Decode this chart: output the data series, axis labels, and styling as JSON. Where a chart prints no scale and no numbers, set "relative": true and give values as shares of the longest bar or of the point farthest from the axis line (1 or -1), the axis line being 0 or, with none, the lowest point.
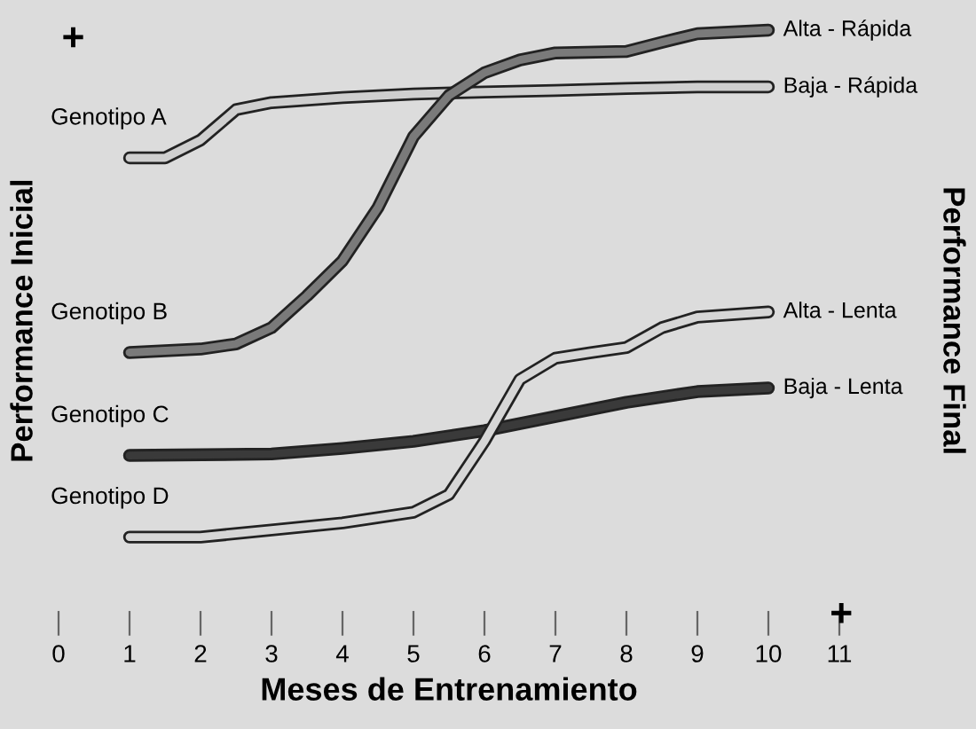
{
  "chart_data": {
    "type": "line",
    "relative": true,
    "xlabel": "Meses de Entrenamiento",
    "ylabel": "Performance Inicial",
    "y2label": "Performance Final",
    "xlim": [
      0,
      11
    ],
    "xticks": [
      0,
      1,
      2,
      3,
      4,
      5,
      6,
      7,
      8,
      9,
      10,
      11
    ],
    "tick_labels": "x",
    "grid": false,
    "legend": false,
    "marker": "none",
    "line_style": "solid",
    "series": [
      {
        "name": "Genotipo A",
        "color": "#cfcfcf",
        "x": [
          1,
          1.5,
          2,
          2.5,
          3,
          4,
          5,
          6,
          7,
          8,
          9,
          10
        ],
        "values": [
          0.748,
          0.748,
          0.783,
          0.843,
          0.857,
          0.867,
          0.874,
          0.878,
          0.881,
          0.885,
          0.888,
          0.888
        ]
      },
      {
        "name": "Genotipo B",
        "color": "#7a7a7a",
        "x": [
          1,
          2,
          2.5,
          3,
          3.5,
          4,
          4.5,
          5,
          5.5,
          6,
          6.5,
          7,
          8,
          8.5,
          9,
          10
        ],
        "values": [
          0.364,
          0.371,
          0.381,
          0.413,
          0.476,
          0.545,
          0.65,
          0.79,
          0.871,
          0.916,
          0.941,
          0.955,
          0.958,
          0.976,
          0.993,
          1
        ]
      },
      {
        "name": "Genotipo C",
        "color": "#3a3a3a",
        "x": [
          1,
          3,
          4,
          5,
          6,
          7,
          8,
          9,
          10
        ],
        "values": [
          0.161,
          0.164,
          0.175,
          0.189,
          0.21,
          0.238,
          0.266,
          0.287,
          0.294
        ]
      },
      {
        "name": "Genotipo D",
        "color": "#d6d6d6",
        "x": [
          1,
          2,
          3,
          4,
          5,
          5.5,
          6,
          6.5,
          7,
          7.5,
          8,
          8.5,
          9,
          10
        ],
        "values": [
          0,
          0,
          0.014,
          0.028,
          0.049,
          0.084,
          0.189,
          0.311,
          0.353,
          0.364,
          0.374,
          0.413,
          0.434,
          0.444
        ]
      }
    ],
    "annotations": [
      "Baja - Rápida",
      "Alta - Rápida",
      "Baja - Lenta",
      "Alta - Lenta",
      "+",
      "+"
    ]
  }
}
